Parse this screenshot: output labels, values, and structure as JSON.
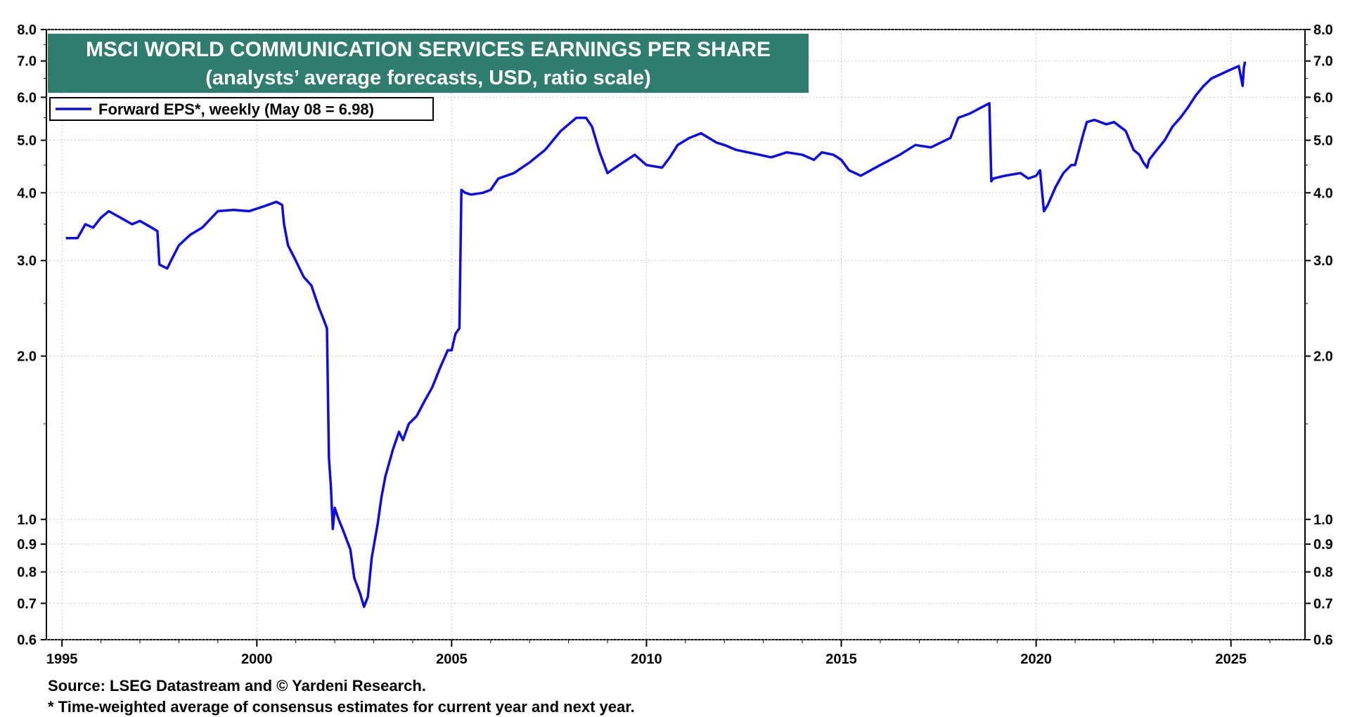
{
  "chart_data": {
    "type": "line",
    "title": "MSCI WORLD COMMUNICATION SERVICES EARNINGS PER SHARE",
    "subtitle": "(analysts’ average forecasts, USD, ratio scale)",
    "yscale": "log",
    "ylim": [
      0.6,
      8.0
    ],
    "xlim": [
      1994.6,
      2026.9
    ],
    "x_ticks": [
      1995,
      2000,
      2005,
      2010,
      2015,
      2020,
      2025
    ],
    "x_tick_labels": [
      "1995",
      "2000",
      "2005",
      "2010",
      "2015",
      "2020",
      "2025"
    ],
    "y_ticks": [
      0.6,
      0.7,
      0.8,
      0.9,
      1.0,
      2.0,
      3.0,
      4.0,
      5.0,
      6.0,
      7.0,
      8.0
    ],
    "y_tick_labels": [
      "0.6",
      "0.7",
      "0.8",
      "0.9",
      "1.0",
      "2.0",
      "3.0",
      "4.0",
      "5.0",
      "6.0",
      "7.0",
      "8.0"
    ],
    "grid": true,
    "legend_position": "top-left",
    "series": [
      {
        "name": "Forward EPS*, weekly (May 08 = 6.98)",
        "color": "#0a0af0",
        "x": [
          1995.1,
          1995.4,
          1995.6,
          1995.8,
          1996.0,
          1996.2,
          1996.5,
          1996.8,
          1997.0,
          1997.3,
          1997.45,
          1997.5,
          1997.7,
          1997.8,
          1998.0,
          1998.3,
          1998.6,
          1999.0,
          1999.4,
          1999.8,
          2000.2,
          2000.5,
          2000.65,
          2000.7,
          2000.8,
          2001.0,
          2001.2,
          2001.4,
          2001.6,
          2001.7,
          2001.8,
          2001.85,
          2001.9,
          2001.95,
          2002.0,
          2002.1,
          2002.2,
          2002.4,
          2002.5,
          2002.65,
          2002.75,
          2002.85,
          2002.95,
          2003.1,
          2003.2,
          2003.3,
          2003.5,
          2003.65,
          2003.75,
          2003.9,
          2004.1,
          2004.3,
          2004.5,
          2004.7,
          2004.9,
          2005.0,
          2005.1,
          2005.2,
          2005.25,
          2005.35,
          2005.5,
          2005.8,
          2006.0,
          2006.2,
          2006.6,
          2007.0,
          2007.4,
          2007.8,
          2008.2,
          2008.45,
          2008.6,
          2008.8,
          2009.0,
          2009.2,
          2009.4,
          2009.7,
          2010.0,
          2010.4,
          2010.6,
          2010.8,
          2011.1,
          2011.4,
          2011.8,
          2012.0,
          2012.3,
          2012.6,
          2012.9,
          2013.2,
          2013.6,
          2014.0,
          2014.3,
          2014.5,
          2014.8,
          2015.0,
          2015.2,
          2015.5,
          2016.0,
          2016.5,
          2016.9,
          2017.3,
          2017.8,
          2018.0,
          2018.3,
          2018.5,
          2018.8,
          2018.85,
          2018.9,
          2019.2,
          2019.6,
          2019.8,
          2020.0,
          2020.1,
          2020.2,
          2020.3,
          2020.5,
          2020.7,
          2020.9,
          2021.0,
          2021.2,
          2021.3,
          2021.5,
          2021.8,
          2022.0,
          2022.3,
          2022.5,
          2022.65,
          2022.75,
          2022.85,
          2022.9,
          2023.1,
          2023.3,
          2023.5,
          2023.7,
          2023.9,
          2024.1,
          2024.3,
          2024.5,
          2024.7,
          2025.0,
          2025.2,
          2025.3,
          2025.33,
          2025.36
        ],
        "values": [
          3.3,
          3.3,
          3.5,
          3.45,
          3.6,
          3.7,
          3.6,
          3.5,
          3.55,
          3.45,
          3.4,
          2.95,
          2.9,
          3.0,
          3.2,
          3.35,
          3.45,
          3.7,
          3.72,
          3.7,
          3.78,
          3.85,
          3.8,
          3.5,
          3.2,
          3.0,
          2.8,
          2.7,
          2.45,
          2.35,
          2.25,
          1.3,
          1.15,
          0.96,
          1.05,
          1.0,
          0.96,
          0.88,
          0.78,
          0.73,
          0.69,
          0.72,
          0.85,
          0.98,
          1.1,
          1.2,
          1.35,
          1.45,
          1.4,
          1.5,
          1.55,
          1.65,
          1.75,
          1.9,
          2.05,
          2.05,
          2.2,
          2.25,
          4.05,
          4.0,
          3.97,
          4.0,
          4.05,
          4.25,
          4.35,
          4.55,
          4.8,
          5.2,
          5.5,
          5.5,
          5.3,
          4.75,
          4.35,
          4.45,
          4.55,
          4.7,
          4.5,
          4.45,
          4.65,
          4.9,
          5.05,
          5.15,
          4.95,
          4.9,
          4.8,
          4.75,
          4.7,
          4.65,
          4.75,
          4.7,
          4.6,
          4.75,
          4.7,
          4.6,
          4.4,
          4.3,
          4.5,
          4.7,
          4.9,
          4.85,
          5.05,
          5.5,
          5.6,
          5.7,
          5.85,
          4.2,
          4.25,
          4.3,
          4.35,
          4.25,
          4.3,
          4.4,
          3.7,
          3.8,
          4.1,
          4.35,
          4.5,
          4.5,
          5.1,
          5.4,
          5.45,
          5.35,
          5.4,
          5.2,
          4.8,
          4.7,
          4.55,
          4.45,
          4.6,
          4.8,
          5.0,
          5.3,
          5.5,
          5.75,
          6.05,
          6.3,
          6.5,
          6.6,
          6.75,
          6.85,
          6.3,
          6.8,
          6.98
        ]
      }
    ],
    "legend": [
      "Forward EPS*, weekly (May 08 = 6.98)"
    ],
    "source_note": "Source: LSEG Datastream and © Yardeni Research.",
    "footnote": "* Time-weighted average of consensus estimates for current year and next year."
  },
  "colors": {
    "title_bg": "#2e7d6e",
    "line": "#0a0af0",
    "grid": "#c8c8c8"
  }
}
